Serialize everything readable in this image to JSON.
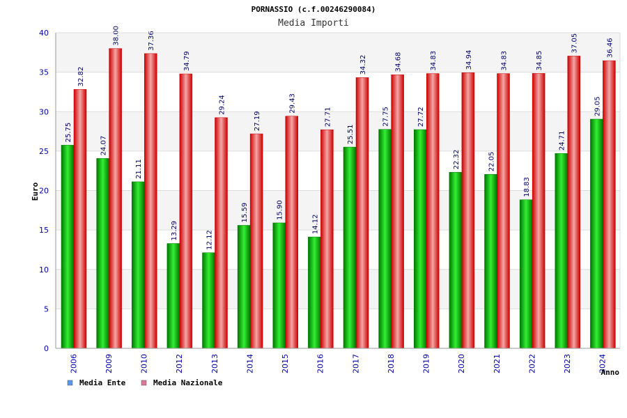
{
  "colors": {
    "band_light": "#f4f4f4",
    "band_white": "#ffffff",
    "grid": "#dddddd",
    "axis": "#999999",
    "ente_dark": "#007700",
    "ente_light": "#33ee33",
    "naz_dark": "#cc0000",
    "naz_light": "#f4a6a6",
    "legend_ente": "#5599ee",
    "legend_naz": "#dd7799"
  },
  "chart_data": {
    "type": "bar",
    "title": "PORNASSIO (c.f.00246290084)",
    "subtitle": "Media Importi",
    "ylabel": "Euro",
    "xlabel": "Anno",
    "ylim": [
      0,
      40
    ],
    "yticks": [
      0,
      5,
      10,
      15,
      20,
      25,
      30,
      35,
      40
    ],
    "grid": true,
    "legend_position": "bottom-left",
    "categories": [
      "2006",
      "2009",
      "2010",
      "2012",
      "2013",
      "2014",
      "2015",
      "2016",
      "2017",
      "2018",
      "2019",
      "2020",
      "2021",
      "2022",
      "2023",
      "2024"
    ],
    "series": [
      {
        "name": "Media Ente",
        "values": [
          25.75,
          24.07,
          21.11,
          13.29,
          12.12,
          15.59,
          15.9,
          14.12,
          25.51,
          27.75,
          27.72,
          22.32,
          22.05,
          18.83,
          24.71,
          29.05
        ],
        "labels": [
          "25.75",
          "24.07",
          "21.11",
          "13.29",
          "12.12",
          "15.59",
          "15.90",
          "14.12",
          "25.51",
          "27.75",
          "27.72",
          "22.32",
          "22.05",
          "18.83",
          "24.71",
          "29.05"
        ]
      },
      {
        "name": "Media Nazionale",
        "values": [
          32.82,
          38.0,
          37.36,
          34.79,
          29.24,
          27.19,
          29.43,
          27.71,
          34.32,
          34.68,
          34.83,
          34.94,
          34.83,
          34.85,
          37.05,
          36.46
        ],
        "labels": [
          "32.82",
          "38.00",
          "37.36",
          "34.79",
          "29.24",
          "27.19",
          "29.43",
          "27.71",
          "34.32",
          "34.68",
          "34.83",
          "34.94",
          "34.83",
          "34.85",
          "37.05",
          "36.46"
        ]
      }
    ]
  }
}
